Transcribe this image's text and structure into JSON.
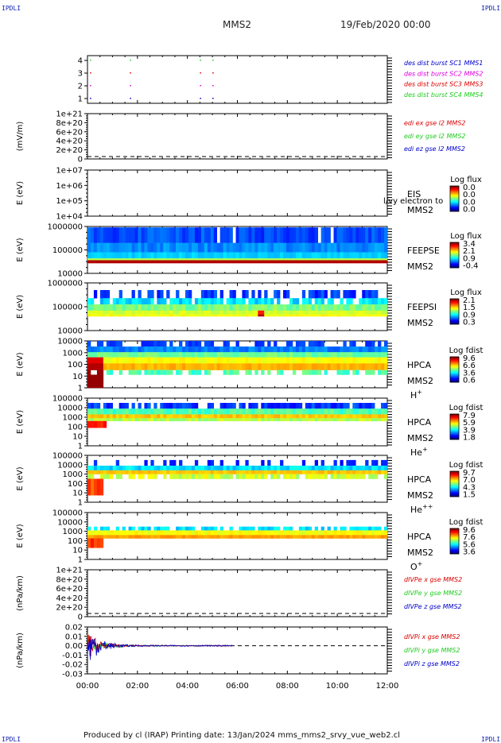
{
  "corners": {
    "top_left": "IPDLI",
    "top_right": "IPDLI",
    "bottom_left": "IPDLI",
    "bottom_right": "IPDLI"
  },
  "header": {
    "spacecraft": "MMS2",
    "date": "19/Feb/2020 00:00"
  },
  "footer": {
    "text": "Produced by cl (IRAP)   Printing date: 13/Jan/2024   mms_mms2_srvy_vue_web2.cl"
  },
  "colors": {
    "red": "#dd0000",
    "magenta": "#dd00dd",
    "green": "#22cc22",
    "blue": "#0000cc",
    "dash": "#000000"
  },
  "chart_data": [
    {
      "type": "scatter",
      "panel": "burst-availability",
      "yticks": [
        "1",
        "2",
        "3",
        "4"
      ],
      "xlabel": "",
      "ylabel": "",
      "legend": [
        {
          "name": "des dist burst SC1 MMS1",
          "color": "#0000cc"
        },
        {
          "name": "des dist burst SC2 MMS2",
          "color": "#dd00dd"
        },
        {
          "name": "des dist burst SC3 MMS3",
          "color": "#dd0000"
        },
        {
          "name": "des dist burst SC4 MMS4",
          "color": "#22cc22"
        }
      ],
      "x_hours": [
        0.1,
        1.7,
        4.5,
        5.0
      ]
    },
    {
      "type": "line",
      "panel": "edi-e-field",
      "ylabel": "(mV/m)",
      "yticks": [
        "1e+21",
        "8e+20",
        "6e+20",
        "4e+20",
        "2e+20",
        "0"
      ],
      "legend": [
        {
          "name": "edi ex gse l2 MMS2",
          "color": "#dd0000"
        },
        {
          "name": "edi ey gse l2 MMS2",
          "color": "#22cc22"
        },
        {
          "name": "edi ez gse l2 MMS2",
          "color": "#0000cc"
        }
      ]
    },
    {
      "type": "heatmap",
      "panel": "eis-electron",
      "ylabel": "E (eV)",
      "yticks": [
        "1e+07",
        "1e+06",
        "1e+05",
        "1e+04"
      ],
      "labels": [
        "EIS",
        "MMS2"
      ],
      "overlay_text": "l/vy electron to",
      "colorbar": {
        "title": "Log flux",
        "ticks": [
          "0.0",
          "0.0",
          "0.0",
          "0.0"
        ]
      }
    },
    {
      "type": "heatmap",
      "panel": "feeps-electron",
      "ylabel": "E (eV)",
      "yticks": [
        "1000000",
        "100000",
        "10000"
      ],
      "labels": [
        "FEEPSE",
        "MMS2"
      ],
      "colorbar": {
        "title": "Log flux",
        "ticks": [
          "3.4",
          "2.1",
          "0.9",
          "-0.4"
        ]
      }
    },
    {
      "type": "heatmap",
      "panel": "feeps-ion",
      "ylabel": "E (eV)",
      "yticks": [
        "1000000",
        "100000",
        "10000"
      ],
      "labels": [
        "FEEPSI",
        "MMS2"
      ],
      "colorbar": {
        "title": "Log flux",
        "ticks": [
          "2.1",
          "1.5",
          "0.9",
          "0.3"
        ]
      }
    },
    {
      "type": "heatmap",
      "panel": "hpca-h",
      "ylabel": "E (eV)",
      "yticks": [
        "10000",
        "1000",
        "100",
        "10",
        "1"
      ],
      "labels": [
        "HPCA",
        "MMS2"
      ],
      "species": "H",
      "species_sup": "+",
      "colorbar": {
        "title": "Log fdist",
        "ticks": [
          "9.6",
          "6.6",
          "3.6",
          "0.6"
        ]
      }
    },
    {
      "type": "heatmap",
      "panel": "hpca-he",
      "ylabel": "E (eV)",
      "yticks": [
        "100000",
        "10000",
        "1000",
        "100",
        "10",
        "1"
      ],
      "labels": [
        "HPCA",
        "MMS2"
      ],
      "species": "He",
      "species_sup": "+",
      "colorbar": {
        "title": "Log fdist",
        "ticks": [
          "7.9",
          "5.9",
          "3.9",
          "1.8"
        ]
      }
    },
    {
      "type": "heatmap",
      "panel": "hpca-hepp",
      "ylabel": "E (eV)",
      "yticks": [
        "100000",
        "10000",
        "1000",
        "100",
        "10",
        "1"
      ],
      "labels": [
        "HPCA",
        "MMS2"
      ],
      "species": "He",
      "species_sup": "++",
      "colorbar": {
        "title": "Log fdist",
        "ticks": [
          "9.7",
          "7.0",
          "4.3",
          "1.5"
        ]
      }
    },
    {
      "type": "heatmap",
      "panel": "hpca-o",
      "ylabel": "E (eV)",
      "yticks": [
        "100000",
        "10000",
        "1000",
        "100",
        "10",
        "1"
      ],
      "labels": [
        "HPCA",
        "MMS2"
      ],
      "species": "O",
      "species_sup": "+",
      "colorbar": {
        "title": "Log fdist",
        "ticks": [
          "9.6",
          "7.6",
          "5.6",
          "3.6"
        ]
      }
    },
    {
      "type": "line",
      "panel": "dIVPe",
      "ylabel": "(nPa/km)",
      "yticks": [
        "1e+21",
        "8e+20",
        "6e+20",
        "4e+20",
        "2e+20",
        "0"
      ],
      "legend": [
        {
          "name": "dIVPe x gse MMS2",
          "color": "#dd0000"
        },
        {
          "name": "dIVPe y gse MMS2",
          "color": "#22cc22"
        },
        {
          "name": "dIVPe z gse MMS2",
          "color": "#0000cc"
        }
      ]
    },
    {
      "type": "line",
      "panel": "dIVPi",
      "ylabel": "(nPa/km)",
      "yticks": [
        "0.02",
        "0.01",
        "0.00",
        "-0.01",
        "-0.02",
        "-0.03"
      ],
      "ylim": [
        -0.03,
        0.02
      ],
      "legend": [
        {
          "name": "dIVPi x gse MMS2",
          "color": "#dd0000"
        },
        {
          "name": "dIVPi y gse MMS2",
          "color": "#22cc22"
        },
        {
          "name": "dIVPi z gse MMS2",
          "color": "#0000cc"
        }
      ],
      "data_end_hour": 5.8
    }
  ],
  "x_axis": {
    "ticks": [
      "00:00",
      "02:00",
      "04:00",
      "06:00",
      "08:00",
      "10:00",
      "12:00"
    ],
    "range_hours": [
      0,
      12
    ]
  }
}
